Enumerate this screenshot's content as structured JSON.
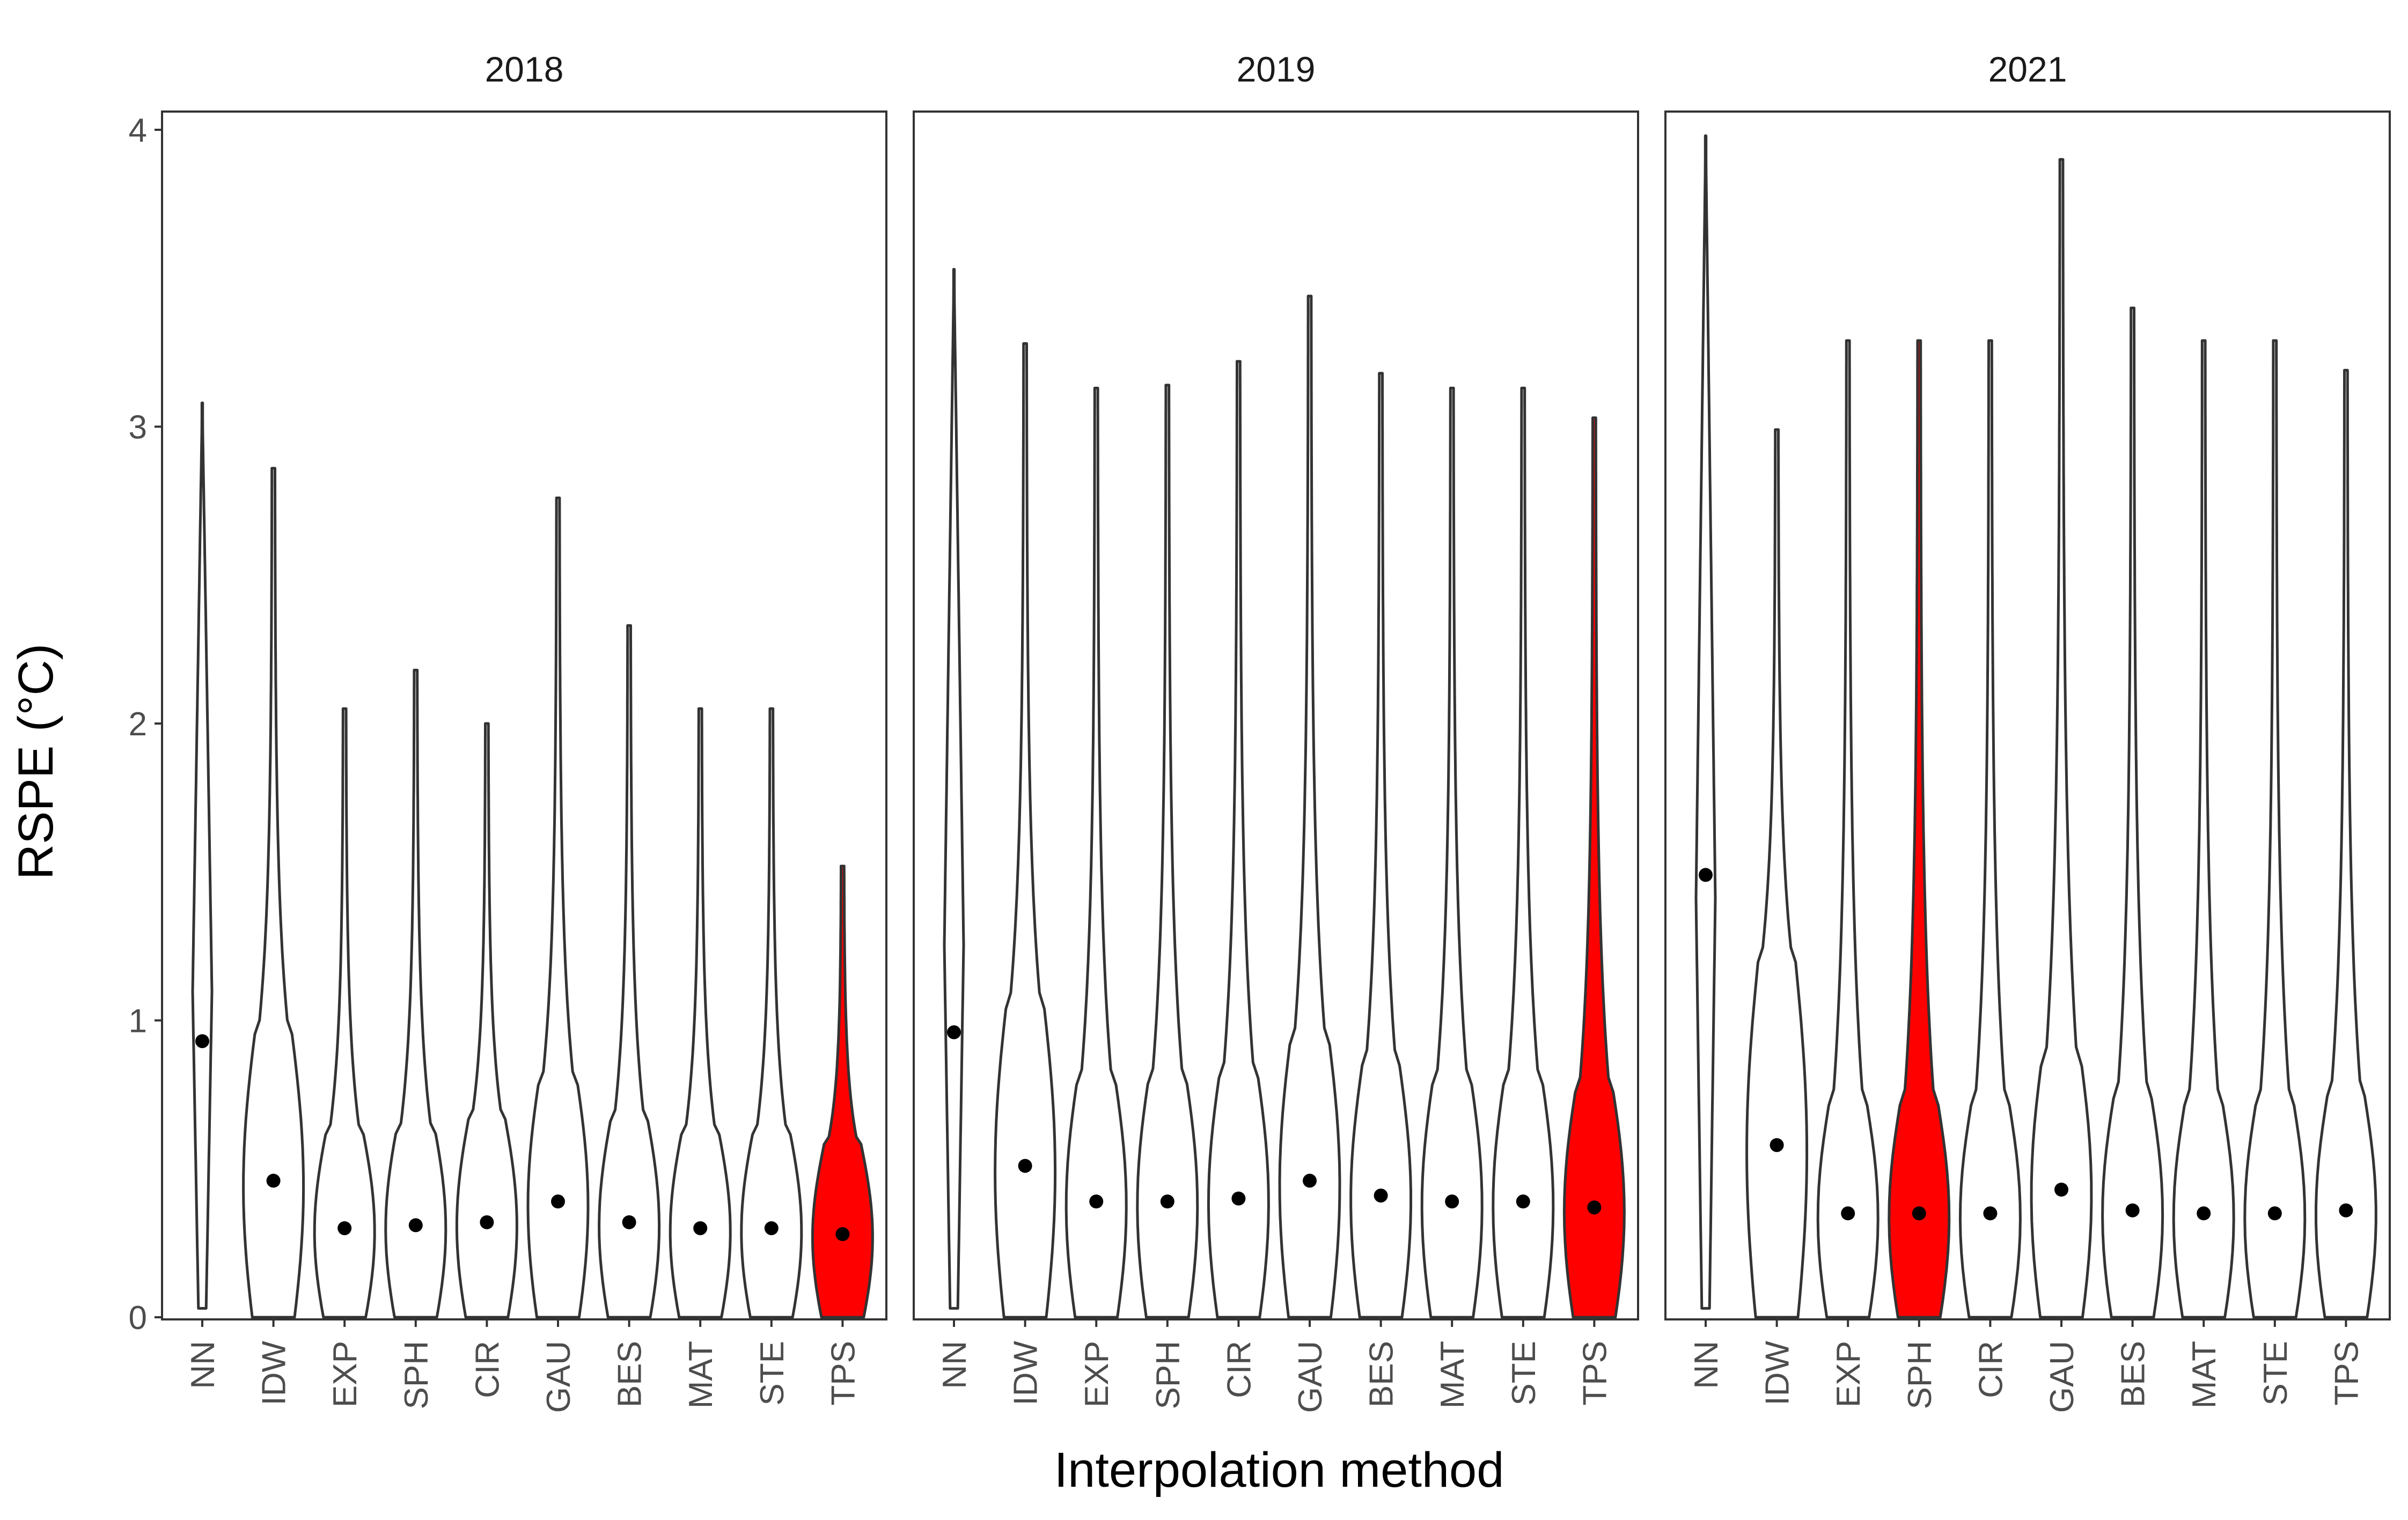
{
  "chart_data": {
    "type": "violin",
    "facet_variable": "year",
    "xlabel": "Interpolation method",
    "ylabel": "RSPE (°C)",
    "ylim": [
      0,
      4
    ],
    "y_ticks": [
      "0",
      "1",
      "2",
      "3",
      "4"
    ],
    "grid": false,
    "legend": "none",
    "colors": {
      "highlight": "#ff0000",
      "default_fill": "#ffffff",
      "outline": "#333333",
      "point": "#000000"
    },
    "categories": [
      "NN",
      "IDW",
      "EXP",
      "SPH",
      "CIR",
      "GAU",
      "BES",
      "MAT",
      "STE",
      "TPS"
    ],
    "panels": [
      {
        "title": "2018",
        "highlighted": "TPS",
        "max": [
          3.08,
          2.86,
          2.05,
          2.18,
          2.0,
          2.76,
          2.33,
          2.05,
          2.05,
          1.52
        ],
        "mean": [
          0.93,
          0.46,
          0.3,
          0.31,
          0.32,
          0.39,
          0.32,
          0.3,
          0.3,
          0.28
        ],
        "min": [
          0.03,
          0.0,
          0.0,
          0.0,
          0.0,
          0.0,
          0.0,
          0.0,
          0.0,
          0.0
        ]
      },
      {
        "title": "2019",
        "highlighted": "TPS",
        "max": [
          3.53,
          3.28,
          3.13,
          3.14,
          3.22,
          3.44,
          3.18,
          3.13,
          3.13,
          3.03
        ],
        "mean": [
          0.96,
          0.51,
          0.39,
          0.39,
          0.4,
          0.46,
          0.41,
          0.39,
          0.39,
          0.37
        ],
        "min": [
          0.03,
          0.0,
          0.0,
          0.0,
          0.0,
          0.0,
          0.0,
          0.0,
          0.0,
          0.0
        ]
      },
      {
        "title": "2021",
        "highlighted": "SPH",
        "max": [
          3.98,
          2.99,
          3.29,
          3.29,
          3.29,
          3.9,
          3.4,
          3.29,
          3.29,
          3.19
        ],
        "mean": [
          1.49,
          0.58,
          0.35,
          0.35,
          0.35,
          0.43,
          0.36,
          0.35,
          0.35,
          0.36
        ],
        "min": [
          0.03,
          0.0,
          0.0,
          0.0,
          0.0,
          0.0,
          0.0,
          0.0,
          0.0,
          0.0
        ]
      }
    ]
  }
}
